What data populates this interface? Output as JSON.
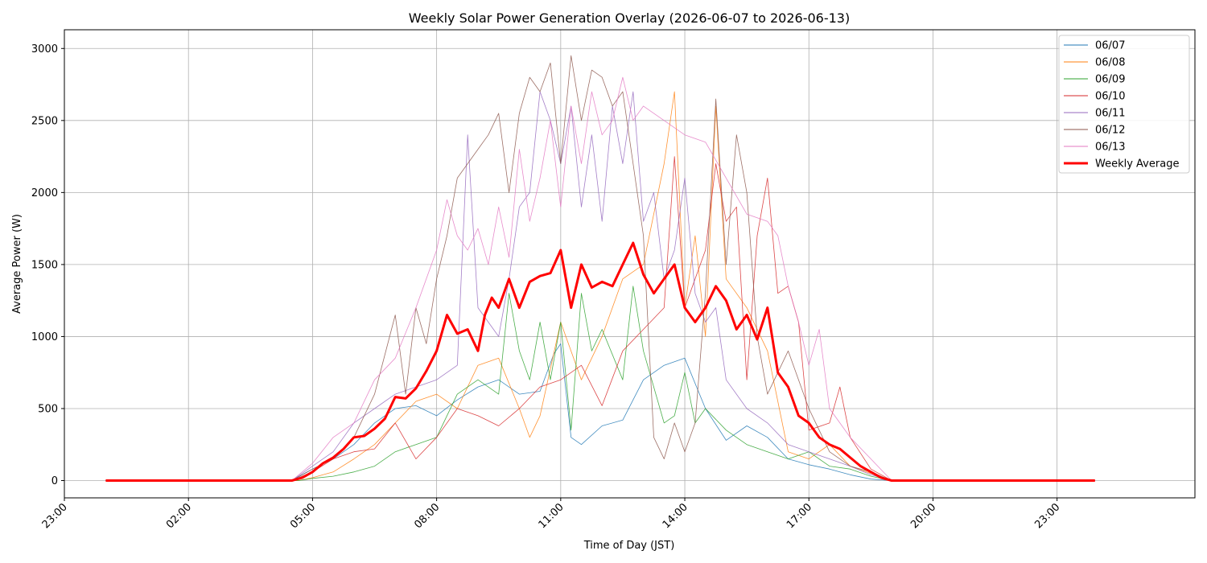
{
  "chart_data": {
    "type": "line",
    "title": "Weekly Solar Power Generation Overlay (2026-06-07 to 2026-06-13)",
    "xlabel": "Time of Day (JST)",
    "ylabel": "Average Power (W)",
    "xlim": [
      "23:00",
      "26:20"
    ],
    "ylim": [
      -120,
      3130
    ],
    "grid": true,
    "legend_position": "top-right",
    "x_ticks": [
      "23:00",
      "02:00",
      "05:00",
      "08:00",
      "11:00",
      "14:00",
      "17:00",
      "20:00",
      "23:00"
    ],
    "y_ticks": [
      0,
      500,
      1000,
      1500,
      2000,
      2500,
      3000
    ],
    "series": [
      {
        "name": "06/07",
        "color": "#1f77b4",
        "linewidth": 0.8,
        "x": [
          "00:00",
          "04:30",
          "05:00",
          "05:30",
          "06:00",
          "06:30",
          "07:00",
          "07:30",
          "08:00",
          "08:30",
          "09:00",
          "09:30",
          "10:00",
          "10:30",
          "10:50",
          "11:00",
          "11:15",
          "11:30",
          "12:00",
          "12:30",
          "13:00",
          "13:30",
          "14:00",
          "14:30",
          "15:00",
          "15:30",
          "16:00",
          "16:30",
          "17:00",
          "17:30",
          "18:00",
          "18:30",
          "19:00",
          "23:55"
        ],
        "y": [
          0,
          0,
          80,
          150,
          250,
          400,
          500,
          520,
          450,
          560,
          650,
          700,
          600,
          620,
          880,
          950,
          300,
          250,
          380,
          420,
          700,
          800,
          850,
          500,
          280,
          380,
          300,
          150,
          110,
          80,
          40,
          10,
          0,
          0
        ]
      },
      {
        "name": "06/08",
        "color": "#ff7f0e",
        "linewidth": 0.8,
        "x": [
          "00:00",
          "04:40",
          "05:00",
          "05:30",
          "06:00",
          "06:30",
          "07:00",
          "07:30",
          "08:00",
          "08:30",
          "09:00",
          "09:30",
          "10:00",
          "10:15",
          "10:30",
          "11:00",
          "11:30",
          "12:00",
          "12:30",
          "13:00",
          "13:30",
          "13:45",
          "14:00",
          "14:15",
          "14:30",
          "14:45",
          "15:00",
          "15:30",
          "16:00",
          "16:30",
          "17:00",
          "17:30",
          "18:00",
          "18:30",
          "19:00",
          "23:55"
        ],
        "y": [
          0,
          0,
          20,
          60,
          150,
          250,
          400,
          550,
          600,
          500,
          800,
          850,
          500,
          300,
          450,
          1100,
          700,
          1000,
          1400,
          1500,
          2200,
          2700,
          1200,
          1700,
          1000,
          2600,
          1400,
          1200,
          900,
          200,
          150,
          250,
          100,
          50,
          0,
          0
        ]
      },
      {
        "name": "06/09",
        "color": "#2ca02c",
        "linewidth": 0.8,
        "x": [
          "00:00",
          "04:40",
          "05:00",
          "05:30",
          "06:00",
          "06:30",
          "07:00",
          "07:30",
          "08:00",
          "08:30",
          "09:00",
          "09:30",
          "09:45",
          "10:00",
          "10:15",
          "10:30",
          "10:45",
          "11:00",
          "11:15",
          "11:30",
          "11:45",
          "12:00",
          "12:30",
          "12:45",
          "13:00",
          "13:30",
          "13:45",
          "14:00",
          "14:15",
          "14:30",
          "15:00",
          "15:30",
          "16:00",
          "16:30",
          "17:00",
          "17:30",
          "18:00",
          "18:30",
          "19:00",
          "23:55"
        ],
        "y": [
          0,
          0,
          15,
          30,
          60,
          100,
          200,
          250,
          300,
          600,
          700,
          600,
          1300,
          900,
          700,
          1100,
          700,
          1100,
          350,
          1300,
          900,
          1050,
          700,
          1350,
          900,
          400,
          450,
          750,
          400,
          500,
          350,
          250,
          200,
          150,
          200,
          100,
          80,
          30,
          0,
          0
        ]
      },
      {
        "name": "06/10",
        "color": "#d62728",
        "linewidth": 0.8,
        "x": [
          "00:00",
          "04:30",
          "05:00",
          "05:30",
          "06:00",
          "06:30",
          "07:00",
          "07:30",
          "08:00",
          "08:30",
          "09:00",
          "09:30",
          "10:00",
          "10:30",
          "11:00",
          "11:30",
          "12:00",
          "12:30",
          "13:00",
          "13:30",
          "13:45",
          "14:00",
          "14:30",
          "14:45",
          "15:00",
          "15:15",
          "15:30",
          "15:45",
          "16:00",
          "16:15",
          "16:30",
          "16:45",
          "17:00",
          "17:30",
          "17:45",
          "18:00",
          "18:30",
          "19:00",
          "23:55"
        ],
        "y": [
          0,
          0,
          60,
          150,
          200,
          220,
          400,
          150,
          300,
          500,
          450,
          380,
          500,
          650,
          700,
          800,
          520,
          900,
          1050,
          1200,
          2250,
          1200,
          1600,
          2200,
          1800,
          1900,
          700,
          1700,
          2100,
          1300,
          1350,
          1100,
          350,
          400,
          650,
          300,
          80,
          0,
          0
        ]
      },
      {
        "name": "06/11",
        "color": "#9467bd",
        "linewidth": 0.8,
        "x": [
          "00:00",
          "04:30",
          "05:00",
          "05:30",
          "06:00",
          "06:30",
          "07:00",
          "07:30",
          "08:00",
          "08:30",
          "08:45",
          "09:00",
          "09:30",
          "09:45",
          "10:00",
          "10:15",
          "10:30",
          "10:45",
          "11:00",
          "11:15",
          "11:30",
          "11:45",
          "12:00",
          "12:15",
          "12:30",
          "12:45",
          "13:00",
          "13:15",
          "13:30",
          "13:45",
          "14:00",
          "14:15",
          "14:30",
          "14:45",
          "15:00",
          "15:30",
          "16:00",
          "16:30",
          "17:00",
          "17:30",
          "18:00",
          "18:30",
          "19:00",
          "23:55"
        ],
        "y": [
          0,
          0,
          100,
          200,
          400,
          500,
          600,
          650,
          700,
          800,
          2400,
          1200,
          1000,
          1400,
          1900,
          2000,
          2700,
          2500,
          2200,
          2600,
          1900,
          2400,
          1800,
          2600,
          2200,
          2700,
          1800,
          2000,
          1400,
          1600,
          2100,
          1300,
          1100,
          1200,
          700,
          500,
          400,
          250,
          200,
          150,
          100,
          40,
          0,
          0
        ]
      },
      {
        "name": "06/12",
        "color": "#8c564b",
        "linewidth": 0.8,
        "x": [
          "00:00",
          "04:30",
          "05:00",
          "05:30",
          "06:00",
          "06:30",
          "07:00",
          "07:15",
          "07:30",
          "07:45",
          "08:00",
          "08:15",
          "08:30",
          "08:45",
          "09:00",
          "09:15",
          "09:30",
          "09:45",
          "10:00",
          "10:15",
          "10:30",
          "10:45",
          "11:00",
          "11:15",
          "11:30",
          "11:45",
          "12:00",
          "12:15",
          "12:30",
          "12:45",
          "13:00",
          "13:15",
          "13:30",
          "13:45",
          "14:00",
          "14:15",
          "14:30",
          "14:45",
          "15:00",
          "15:15",
          "15:30",
          "15:45",
          "16:00",
          "16:30",
          "17:00",
          "17:30",
          "18:00",
          "18:30",
          "19:00",
          "23:55"
        ],
        "y": [
          0,
          0,
          80,
          150,
          300,
          600,
          1150,
          600,
          1200,
          950,
          1400,
          1700,
          2100,
          2200,
          2300,
          2400,
          2550,
          2000,
          2550,
          2800,
          2700,
          2900,
          2200,
          2950,
          2500,
          2850,
          2800,
          2600,
          2700,
          2200,
          1700,
          300,
          150,
          400,
          200,
          400,
          1300,
          2650,
          1500,
          2400,
          2000,
          1000,
          600,
          900,
          500,
          200,
          100,
          60,
          0,
          0
        ]
      },
      {
        "name": "06/13",
        "color": "#e377c2",
        "linewidth": 0.8,
        "x": [
          "00:00",
          "04:30",
          "05:00",
          "05:30",
          "06:00",
          "06:30",
          "07:00",
          "07:30",
          "08:00",
          "08:15",
          "08:30",
          "08:45",
          "09:00",
          "09:15",
          "09:30",
          "09:45",
          "10:00",
          "10:15",
          "10:30",
          "10:45",
          "11:00",
          "11:15",
          "11:30",
          "11:45",
          "12:00",
          "12:15",
          "12:30",
          "12:45",
          "13:00",
          "13:15",
          "13:30",
          "13:45",
          "14:00",
          "14:30",
          "15:00",
          "15:30",
          "16:00",
          "16:15",
          "16:30",
          "16:45",
          "17:00",
          "17:15",
          "17:30",
          "17:45",
          "18:00",
          "18:30",
          "19:00",
          "23:55"
        ],
        "y": [
          0,
          0,
          120,
          300,
          400,
          700,
          850,
          1200,
          1600,
          1950,
          1700,
          1600,
          1750,
          1500,
          1900,
          1550,
          2300,
          1800,
          2100,
          2500,
          1900,
          2600,
          2200,
          2700,
          2400,
          2500,
          2800,
          2500,
          2600,
          2550,
          2500,
          2450,
          2400,
          2350,
          2100,
          1850,
          1800,
          1700,
          1350,
          1100,
          800,
          1050,
          500,
          400,
          300,
          150,
          0,
          0
        ]
      },
      {
        "name": "Weekly Average",
        "color": "#ff0000",
        "linewidth": 3,
        "x": [
          "00:00",
          "04:30",
          "04:45",
          "05:00",
          "05:15",
          "05:30",
          "05:45",
          "06:00",
          "06:15",
          "06:30",
          "06:45",
          "07:00",
          "07:15",
          "07:30",
          "07:45",
          "08:00",
          "08:15",
          "08:30",
          "08:45",
          "09:00",
          "09:10",
          "09:20",
          "09:30",
          "09:45",
          "10:00",
          "10:15",
          "10:30",
          "10:45",
          "11:00",
          "11:15",
          "11:30",
          "11:45",
          "12:00",
          "12:15",
          "12:30",
          "12:45",
          "13:00",
          "13:15",
          "13:30",
          "13:45",
          "14:00",
          "14:15",
          "14:30",
          "14:45",
          "15:00",
          "15:15",
          "15:30",
          "15:45",
          "16:00",
          "16:15",
          "16:30",
          "16:45",
          "17:00",
          "17:15",
          "17:30",
          "17:45",
          "18:00",
          "18:15",
          "18:30",
          "18:45",
          "19:00",
          "19:15",
          "23:55"
        ],
        "y": [
          0,
          0,
          20,
          60,
          120,
          160,
          220,
          300,
          310,
          360,
          430,
          580,
          570,
          640,
          760,
          900,
          1150,
          1020,
          1050,
          900,
          1150,
          1270,
          1200,
          1400,
          1200,
          1380,
          1420,
          1440,
          1600,
          1200,
          1500,
          1340,
          1380,
          1350,
          1500,
          1650,
          1430,
          1300,
          1400,
          1500,
          1200,
          1100,
          1200,
          1350,
          1250,
          1050,
          1150,
          980,
          1200,
          750,
          650,
          450,
          400,
          300,
          250,
          220,
          160,
          100,
          60,
          20,
          0,
          0,
          0
        ]
      }
    ]
  }
}
